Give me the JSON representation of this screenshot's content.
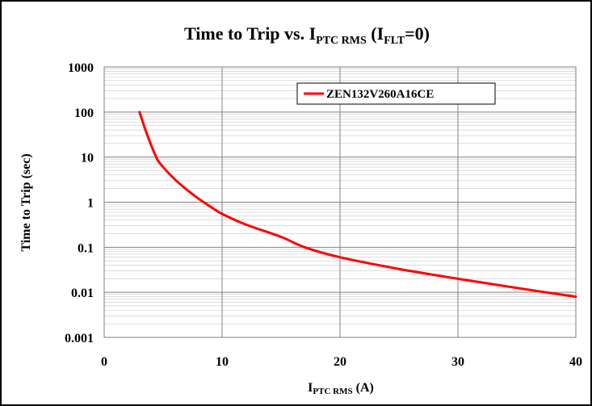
{
  "chart_data": {
    "type": "line",
    "title": {
      "main": "Time to Trip vs. I",
      "sub": "PTC RMS",
      "paren_open": " (I",
      "paren_sub": "FLT",
      "paren_close": "=0)"
    },
    "xlabel": {
      "main": "I",
      "sub": "PTC RMS",
      "rest": " (A)"
    },
    "ylabel": "Time to Trip (sec)",
    "x_scale": "linear",
    "y_scale": "log",
    "xlim": [
      0,
      40
    ],
    "ylim": [
      0.001,
      1000
    ],
    "x_ticks": [
      0,
      10,
      20,
      30,
      40
    ],
    "x_tick_labels": [
      "0",
      "10",
      "20",
      "30",
      "40"
    ],
    "y_ticks": [
      0.001,
      0.01,
      0.1,
      1,
      10,
      100,
      1000
    ],
    "y_tick_labels": [
      "0.001",
      "0.01",
      "0.1",
      "1",
      "10",
      "100",
      "1000"
    ],
    "grid": true,
    "legend_position": "top-right",
    "series": [
      {
        "name": "ZEN132V260A16CE",
        "color": "#ff0000",
        "x": [
          3,
          3.5,
          4,
          4.5,
          5,
          6,
          7,
          8,
          9,
          10,
          12,
          15,
          17,
          20,
          25,
          30,
          35,
          40
        ],
        "y": [
          100,
          40,
          18,
          9,
          6,
          3.2,
          1.9,
          1.2,
          0.8,
          0.55,
          0.32,
          0.17,
          0.1,
          0.06,
          0.033,
          0.02,
          0.0125,
          0.008
        ]
      }
    ]
  }
}
